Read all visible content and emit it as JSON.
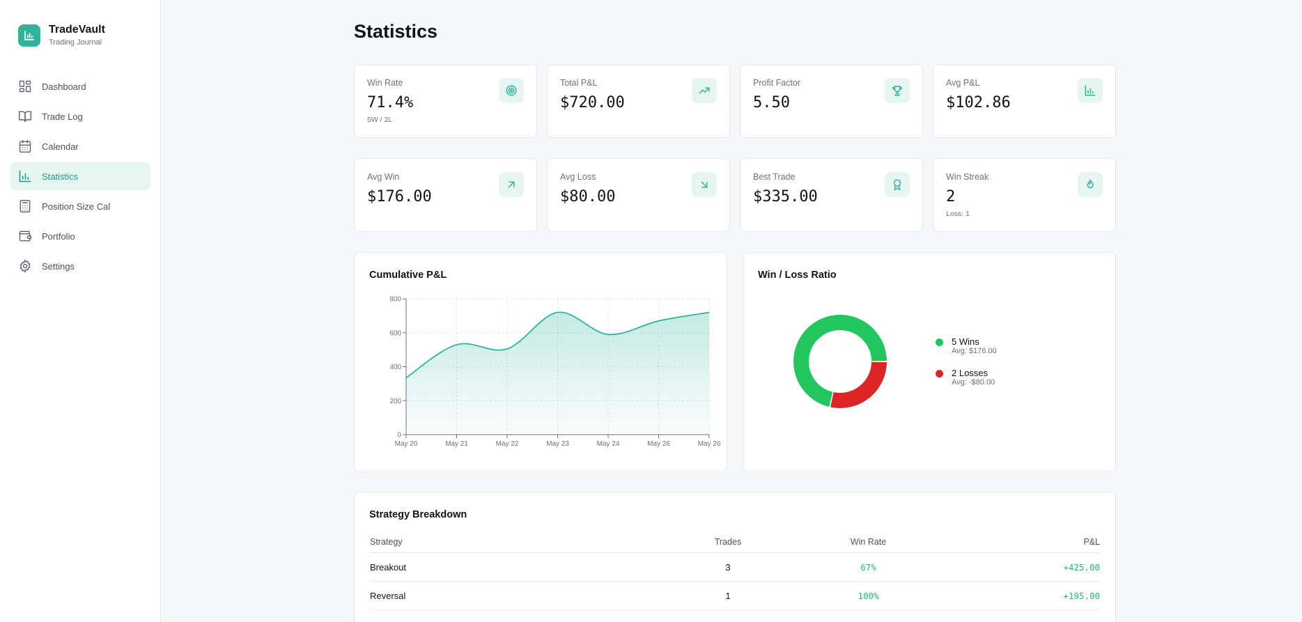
{
  "app": {
    "name": "TradeVault",
    "subtitle": "Trading Journal"
  },
  "sidebar": {
    "items": [
      {
        "label": "Dashboard",
        "icon": "dashboard-icon"
      },
      {
        "label": "Trade Log",
        "icon": "book-icon"
      },
      {
        "label": "Calendar",
        "icon": "calendar-icon"
      },
      {
        "label": "Statistics",
        "icon": "bar-chart-icon",
        "active": true
      },
      {
        "label": "Position Size Cal",
        "icon": "calculator-icon"
      },
      {
        "label": "Portfolio",
        "icon": "wallet-icon"
      },
      {
        "label": "Settings",
        "icon": "gear-icon"
      }
    ]
  },
  "page": {
    "title": "Statistics"
  },
  "stats": [
    {
      "label": "Win Rate",
      "value": "71.4%",
      "sub": "5W / 2L",
      "icon": "target-icon"
    },
    {
      "label": "Total P&L",
      "value": "$720.00",
      "sub": "",
      "icon": "trending-up-icon"
    },
    {
      "label": "Profit Factor",
      "value": "5.50",
      "sub": "",
      "icon": "trophy-icon"
    },
    {
      "label": "Avg P&L",
      "value": "$102.86",
      "sub": "",
      "icon": "bar-chart-icon"
    },
    {
      "label": "Avg Win",
      "value": "$176.00",
      "sub": "",
      "icon": "arrow-up-right-icon"
    },
    {
      "label": "Avg Loss",
      "value": "$80.00",
      "sub": "",
      "icon": "arrow-down-right-icon"
    },
    {
      "label": "Best Trade",
      "value": "$335.00",
      "sub": "",
      "icon": "award-icon"
    },
    {
      "label": "Win Streak",
      "value": "2",
      "sub": "Loss: 1",
      "icon": "flame-icon"
    }
  ],
  "colors": {
    "accent": "#2fb39a",
    "win": "#22c55e",
    "loss": "#dc2626"
  },
  "cumulative": {
    "title": "Cumulative P&L",
    "chart_data": {
      "type": "area",
      "title": "Cumulative P&L",
      "categories": [
        "May 20",
        "May 21",
        "May 22",
        "May 23",
        "May 24",
        "May 26",
        "May 26"
      ],
      "values": [
        335,
        530,
        505,
        720,
        590,
        670,
        720
      ],
      "ylim": [
        0,
        800
      ],
      "yticks": [
        "0",
        "200",
        "400",
        "600",
        "800"
      ],
      "grid": true
    }
  },
  "winloss": {
    "title": "Win / Loss Ratio",
    "chart_data": {
      "type": "pie",
      "title": "Win / Loss Ratio",
      "slices": [
        {
          "name": "5 Wins",
          "value": 5,
          "avg": "Avg: $176.00",
          "color": "#22c55e"
        },
        {
          "name": "2 Losses",
          "value": 2,
          "avg": "Avg: -$80.00",
          "color": "#dc2626"
        }
      ]
    }
  },
  "strategy": {
    "title": "Strategy Breakdown",
    "columns": [
      "Strategy",
      "Trades",
      "Win Rate",
      "P&L"
    ],
    "rows": [
      {
        "name": "Breakout",
        "trades": "3",
        "win_rate": "67%",
        "pnl": "+425.00"
      },
      {
        "name": "Reversal",
        "trades": "1",
        "win_rate": "100%",
        "pnl": "+195.00"
      }
    ]
  }
}
